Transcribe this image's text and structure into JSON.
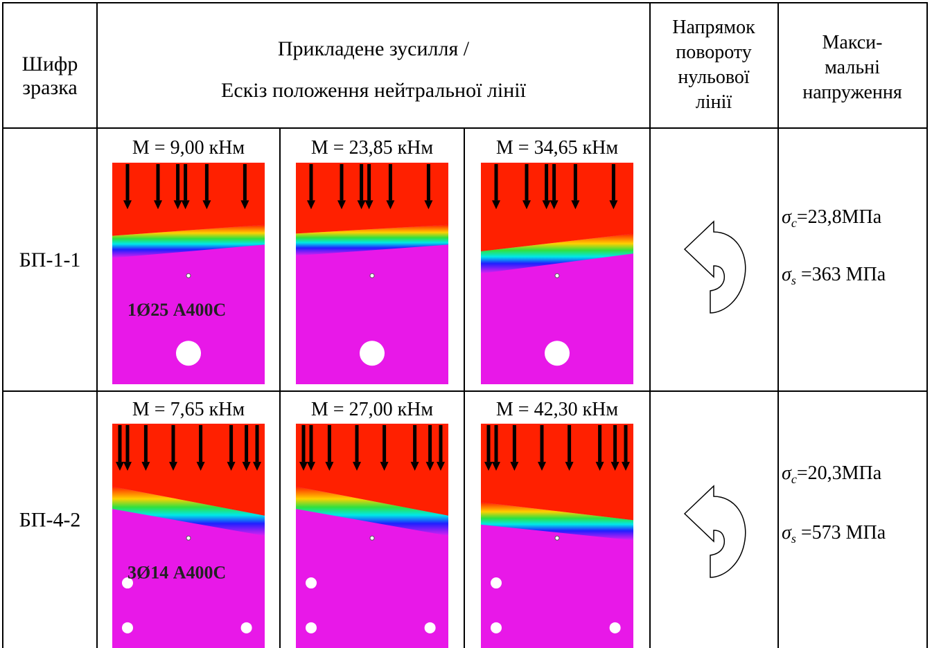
{
  "header": {
    "code": [
      "Шифр",
      "зразка"
    ],
    "load": [
      "Прикладене зусилля /",
      "Ескіз положення нейтральної лінії"
    ],
    "direction": [
      "Напрямок",
      "повороту",
      "нульової",
      "лінії"
    ],
    "stress": [
      "Макси-",
      "мальні",
      "напруження"
    ]
  },
  "rows": [
    {
      "code": "БП-1-1",
      "moments": [
        "M = 9,00 кНм",
        "M = 23,85 кНм",
        "M = 34,65 кНм"
      ],
      "reinforcement": "1Ø25 А400С",
      "stresses": [
        {
          "symbol": "σ",
          "sub": "c",
          "text": "=23,8МПа"
        },
        {
          "symbol": "σ",
          "sub": "s",
          "text": " =363 МПа"
        }
      ]
    },
    {
      "code": "БП-4-2",
      "moments": [
        "M = 7,65 кНм",
        "M = 27,00 кНм",
        "M = 42,30 кНм"
      ],
      "reinforcement": "3Ø14 А400С",
      "stresses": [
        {
          "symbol": "σ",
          "sub": "c",
          "text": "=20,3МПа"
        },
        {
          "symbol": "σ",
          "sub": "s",
          "text": " =573 МПа"
        }
      ]
    }
  ]
}
